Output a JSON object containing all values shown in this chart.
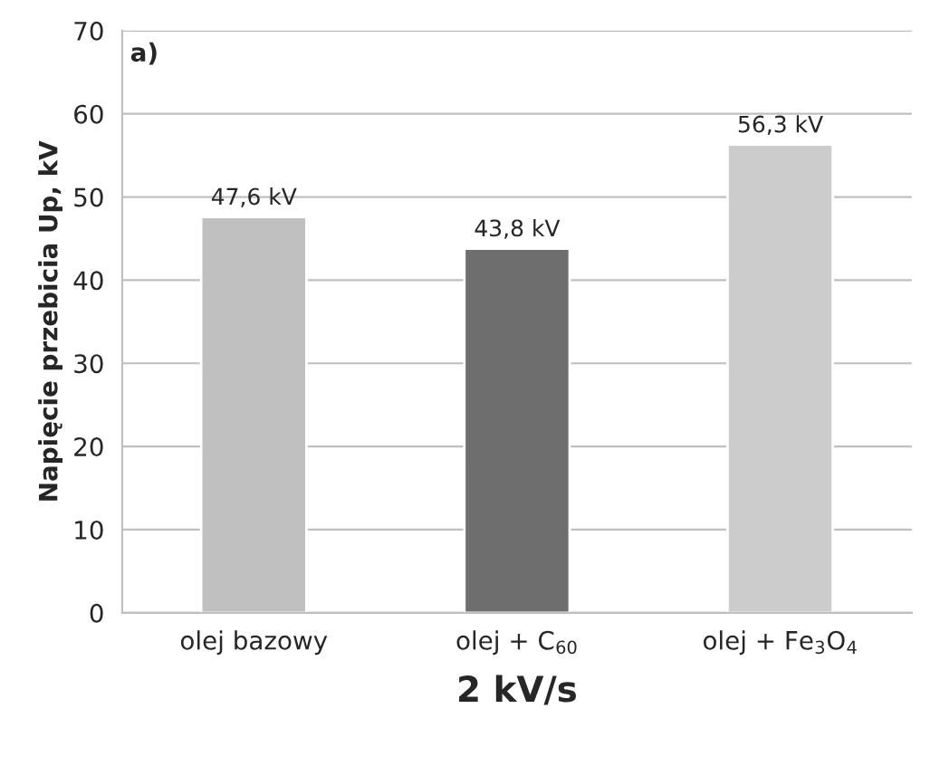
{
  "chart_data": {
    "type": "bar",
    "categories": [
      "olej bazowy",
      "olej + C$_{60}$",
      "olej + Fe$_{3}$O$_{4}$"
    ],
    "values": [
      47.6,
      43.8,
      56.3
    ],
    "value_labels": [
      "47,6 kV",
      "43,8 kV",
      "56,3 kV"
    ],
    "colors": [
      "#c0c0c0",
      "#6e6e6e",
      "#cccccc"
    ],
    "xlabel": "2 kV/s",
    "ylabel": "Napięcie przebicia Up, kV",
    "annotations": [
      "a)"
    ],
    "ylim": [
      0,
      70
    ],
    "yticks": [
      0,
      10,
      20,
      30,
      40,
      50,
      60,
      70
    ],
    "grid": "y"
  }
}
